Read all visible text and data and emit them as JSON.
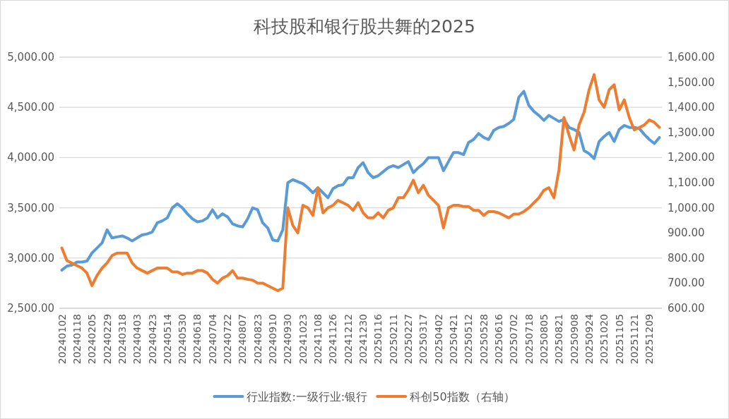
{
  "chart_data": {
    "type": "line",
    "title": "科技股和银行股共舞的2025",
    "categories": [
      "20240102",
      null,
      null,
      "20240118",
      null,
      null,
      "20240205",
      null,
      null,
      "20240229",
      null,
      null,
      "20240318",
      null,
      null,
      "20240403",
      null,
      null,
      "20240423",
      null,
      null,
      "20240514",
      null,
      null,
      "20240530",
      null,
      null,
      "20240618",
      null,
      null,
      "20240704",
      null,
      null,
      "20240722",
      null,
      null,
      "20240807",
      null,
      null,
      "20240823",
      null,
      null,
      "20240910",
      null,
      null,
      "20240930",
      null,
      null,
      "20241023",
      null,
      null,
      "20241108",
      null,
      null,
      "20241126",
      null,
      null,
      "20241212",
      null,
      null,
      "20241230",
      null,
      null,
      "20250116",
      null,
      null,
      "20250211",
      null,
      null,
      "20250227",
      null,
      null,
      "20250317",
      null,
      null,
      "20250402",
      null,
      null,
      "20250421",
      null,
      null,
      "20250512",
      null,
      null,
      "20250528",
      null,
      null,
      "20250616",
      null,
      null,
      "20250702",
      null,
      null,
      "20250718",
      null,
      null,
      "20250805",
      null,
      null,
      "20250821",
      null,
      null,
      "20250908",
      null,
      null,
      "20250924",
      null,
      null,
      "20251020",
      null,
      null,
      "20251105",
      null,
      null,
      "20251121",
      null,
      null,
      "20251209",
      null,
      null
    ],
    "series": [
      {
        "name": "行业指数:一级行业:银行",
        "color": "#5b9bd5",
        "values": [
          2880,
          2920,
          2930,
          2960,
          2960,
          2970,
          3050,
          3100,
          3150,
          3280,
          3200,
          3210,
          3220,
          3200,
          3170,
          3200,
          3230,
          3240,
          3260,
          3350,
          3370,
          3400,
          3500,
          3540,
          3500,
          3440,
          3390,
          3360,
          3370,
          3400,
          3480,
          3400,
          3440,
          3410,
          3340,
          3320,
          3310,
          3390,
          3500,
          3480,
          3350,
          3300,
          3180,
          3170,
          3280,
          3750,
          3780,
          3760,
          3740,
          3700,
          3650,
          3700,
          3650,
          3600,
          3690,
          3720,
          3730,
          3800,
          3800,
          3900,
          3950,
          3850,
          3800,
          3820,
          3860,
          3900,
          3920,
          3900,
          3930,
          3960,
          3850,
          3900,
          3940,
          4000,
          4000,
          4000,
          3870,
          3960,
          4050,
          4050,
          4030,
          4150,
          4180,
          4240,
          4200,
          4180,
          4270,
          4300,
          4310,
          4340,
          4380,
          4600,
          4660,
          4520,
          4460,
          4420,
          4370,
          4420,
          4390,
          4360,
          4380,
          4300,
          4280,
          4250,
          4070,
          4040,
          3990,
          4160,
          4210,
          4250,
          4160,
          4280,
          4320,
          4300,
          4300,
          4290,
          4230,
          4180,
          4140,
          4200
        ]
      },
      {
        "name": "科创50指数（右轴）",
        "color": "#ed7d31",
        "axis": "y2",
        "values": [
          840,
          790,
          780,
          770,
          760,
          740,
          690,
          730,
          760,
          780,
          810,
          820,
          820,
          820,
          780,
          760,
          750,
          740,
          750,
          760,
          760,
          760,
          745,
          745,
          735,
          740,
          740,
          750,
          750,
          740,
          715,
          700,
          720,
          730,
          750,
          720,
          720,
          715,
          712,
          700,
          700,
          690,
          680,
          670,
          680,
          1000,
          930,
          900,
          1010,
          1000,
          970,
          1080,
          980,
          1000,
          1010,
          1030,
          1020,
          1010,
          990,
          1020,
          980,
          960,
          960,
          980,
          960,
          990,
          1000,
          1040,
          1040,
          1070,
          1110,
          1060,
          1090,
          1050,
          1030,
          1010,
          920,
          1000,
          1010,
          1010,
          1005,
          1005,
          990,
          990,
          970,
          985,
          985,
          980,
          970,
          960,
          975,
          975,
          985,
          1000,
          1020,
          1040,
          1070,
          1080,
          1040,
          1150,
          1360,
          1290,
          1230,
          1330,
          1380,
          1470,
          1530,
          1430,
          1400,
          1470,
          1490,
          1390,
          1430,
          1360,
          1310,
          1320,
          1330,
          1350,
          1340,
          1320
        ]
      }
    ],
    "ylim": [
      2500,
      5000
    ],
    "yticks": [
      {
        "value": 2500,
        "label": "2,500.00"
      },
      {
        "value": 3000,
        "label": "3,000.00"
      },
      {
        "value": 3500,
        "label": "3,500.00"
      },
      {
        "value": 4000,
        "label": "4,000.00"
      },
      {
        "value": 4500,
        "label": "4,500.00"
      },
      {
        "value": 5000,
        "label": "5,000.00"
      }
    ],
    "y2lim": [
      600,
      1600
    ],
    "y2ticks": [
      {
        "value": 600,
        "label": "600.00"
      },
      {
        "value": 700,
        "label": "700.00"
      },
      {
        "value": 800,
        "label": "800.00"
      },
      {
        "value": 900,
        "label": "900.00"
      },
      {
        "value": 1000,
        "label": "1,000.00"
      },
      {
        "value": 1100,
        "label": "1,100.00"
      },
      {
        "value": 1200,
        "label": "1,200.00"
      },
      {
        "value": 1300,
        "label": "1,300.00"
      },
      {
        "value": 1400,
        "label": "1,400.00"
      },
      {
        "value": 1500,
        "label": "1,500.00"
      },
      {
        "value": 1600,
        "label": "1,600.00"
      }
    ],
    "grid": "y",
    "legend": "bottom"
  }
}
